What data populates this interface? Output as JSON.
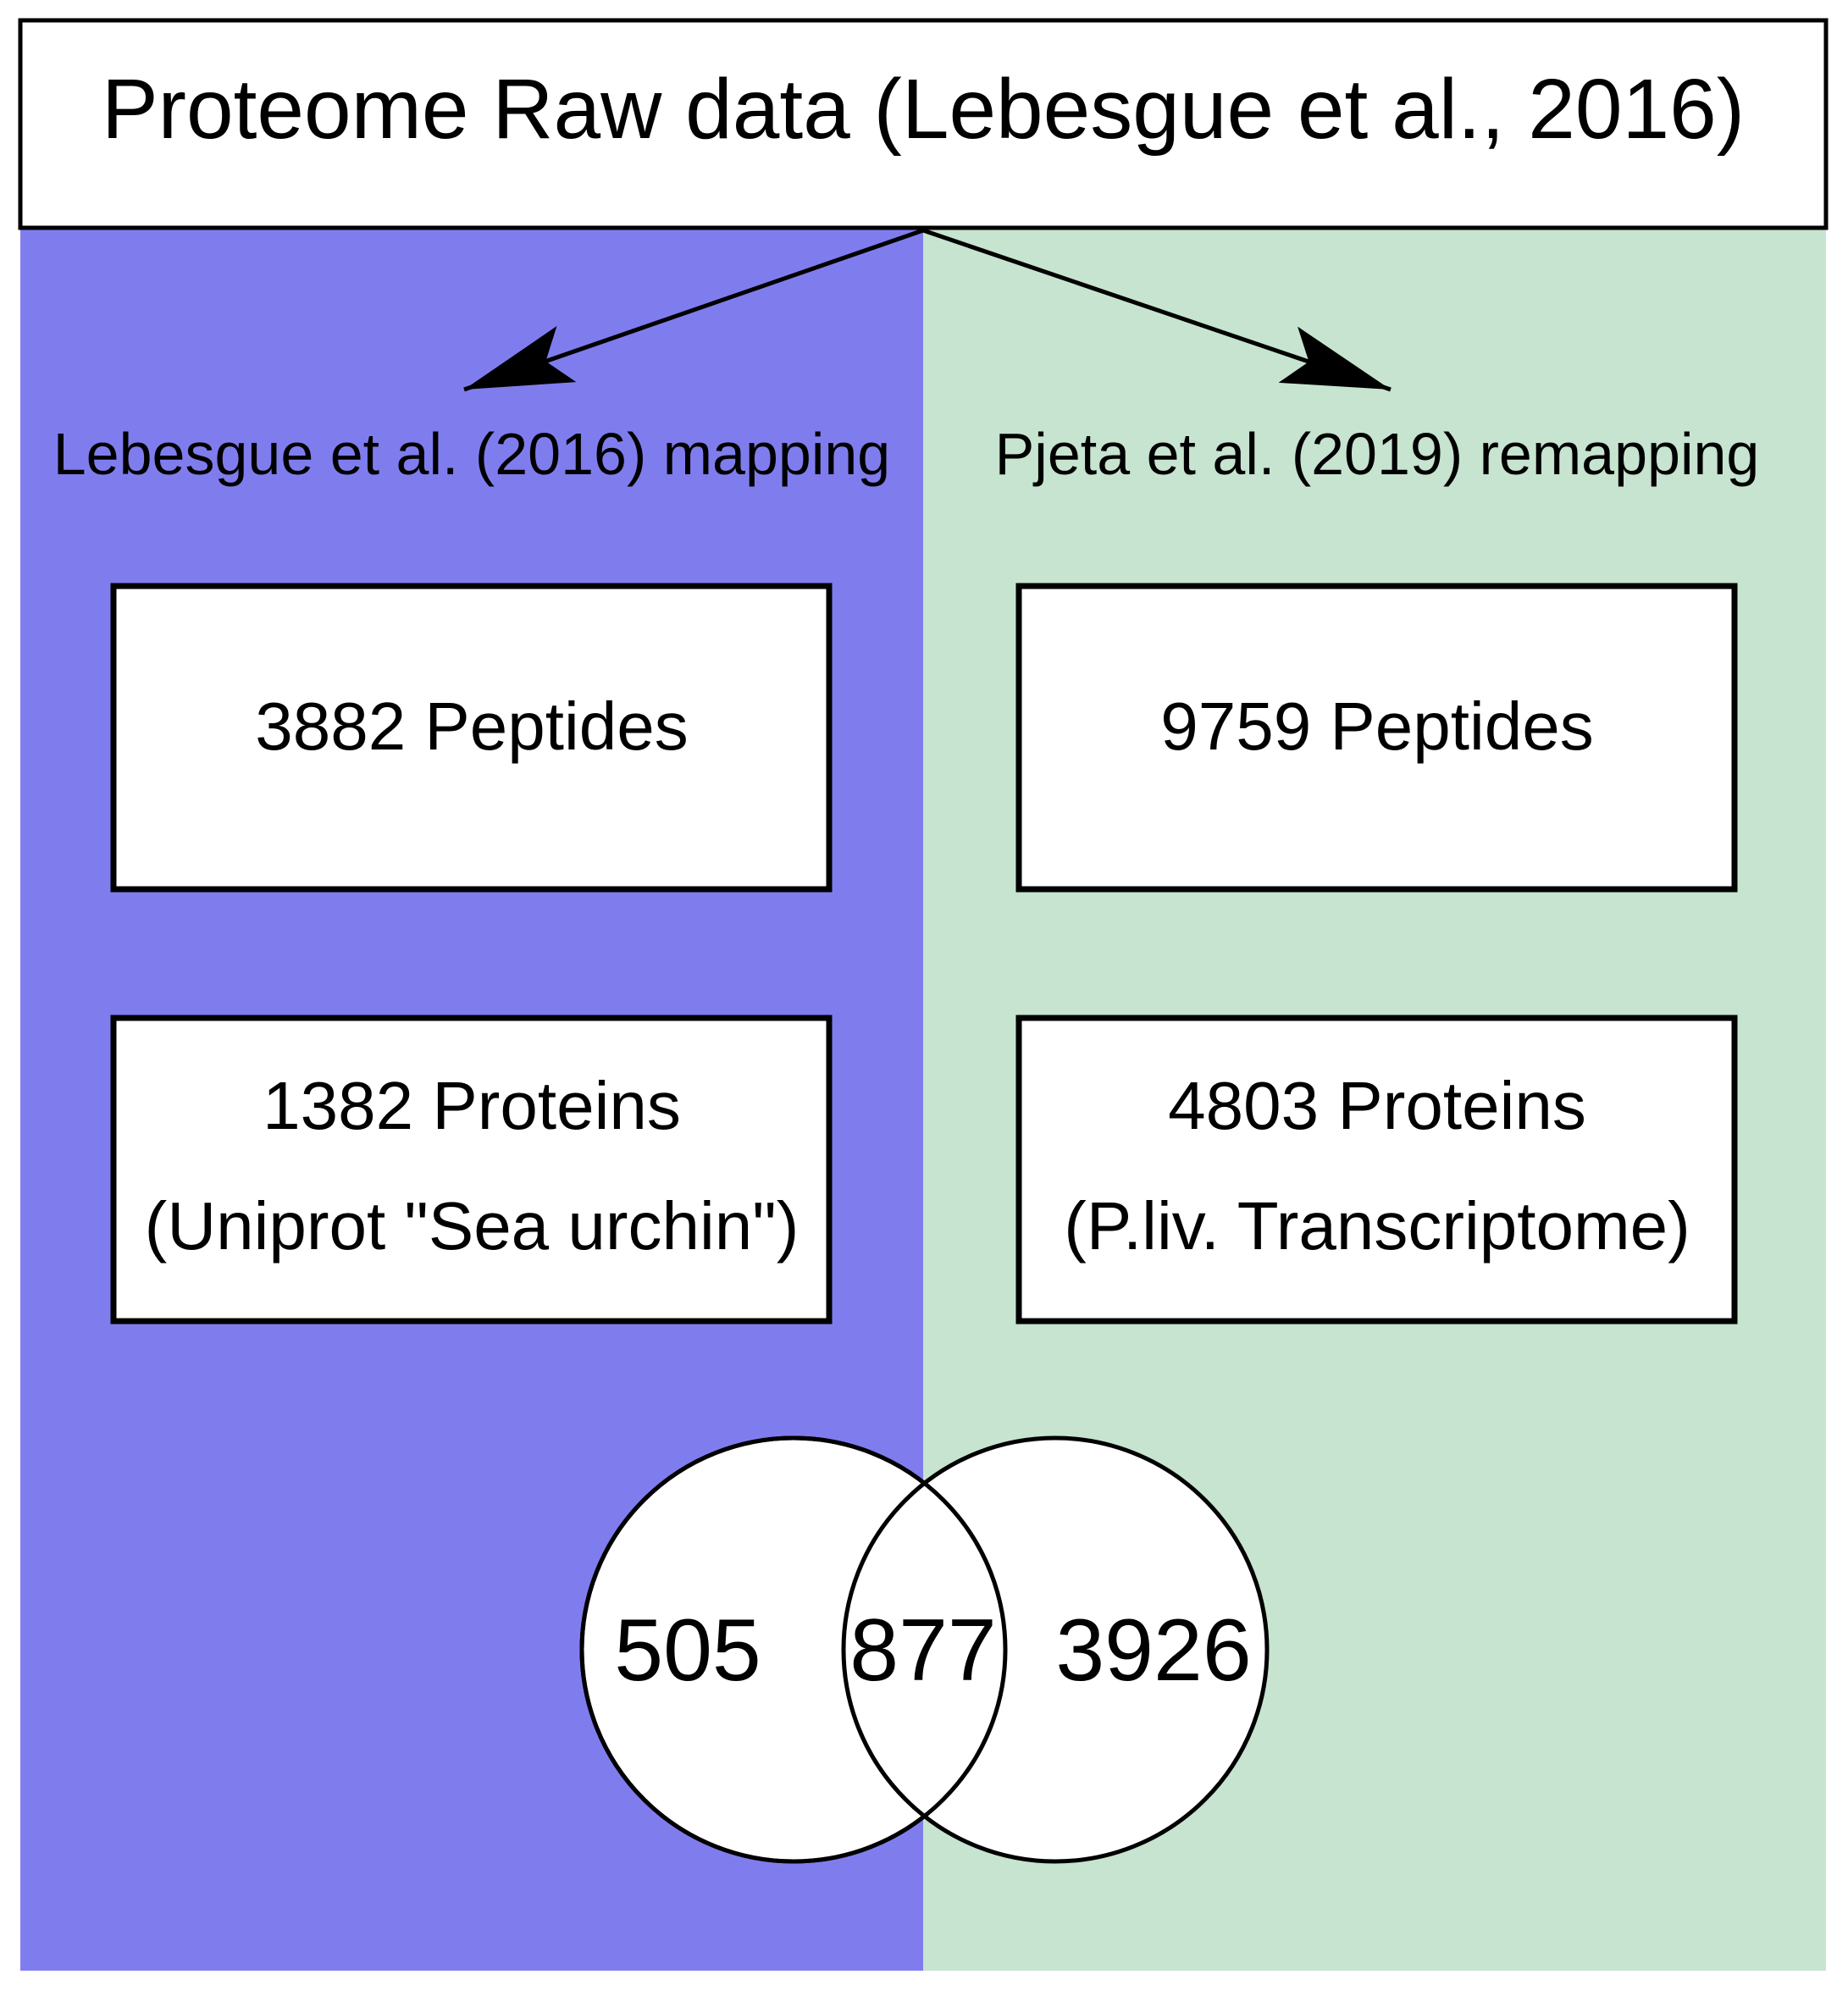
{
  "title": "Proteome Raw data (Lebesgue et al., 2016)",
  "colors": {
    "left_panel": "#7f7dee",
    "right_panel": "#c6e4cf",
    "box_fill": "#ffffff",
    "stroke": "#000000"
  },
  "left": {
    "heading": "Lebesgue et al. (2016) mapping",
    "peptides": "3882 Peptides",
    "proteins_line1": "1382 Proteins",
    "proteins_line2": "(Uniprot \"Sea urchin\")"
  },
  "right": {
    "heading": "Pjeta et al. (2019) remapping",
    "peptides": "9759 Peptides",
    "proteins_line1": "4803 Proteins",
    "proteins_line2": "(P.liv. Transcriptome)"
  },
  "venn": {
    "left_only": "505",
    "overlap": "877",
    "right_only": "3926"
  }
}
